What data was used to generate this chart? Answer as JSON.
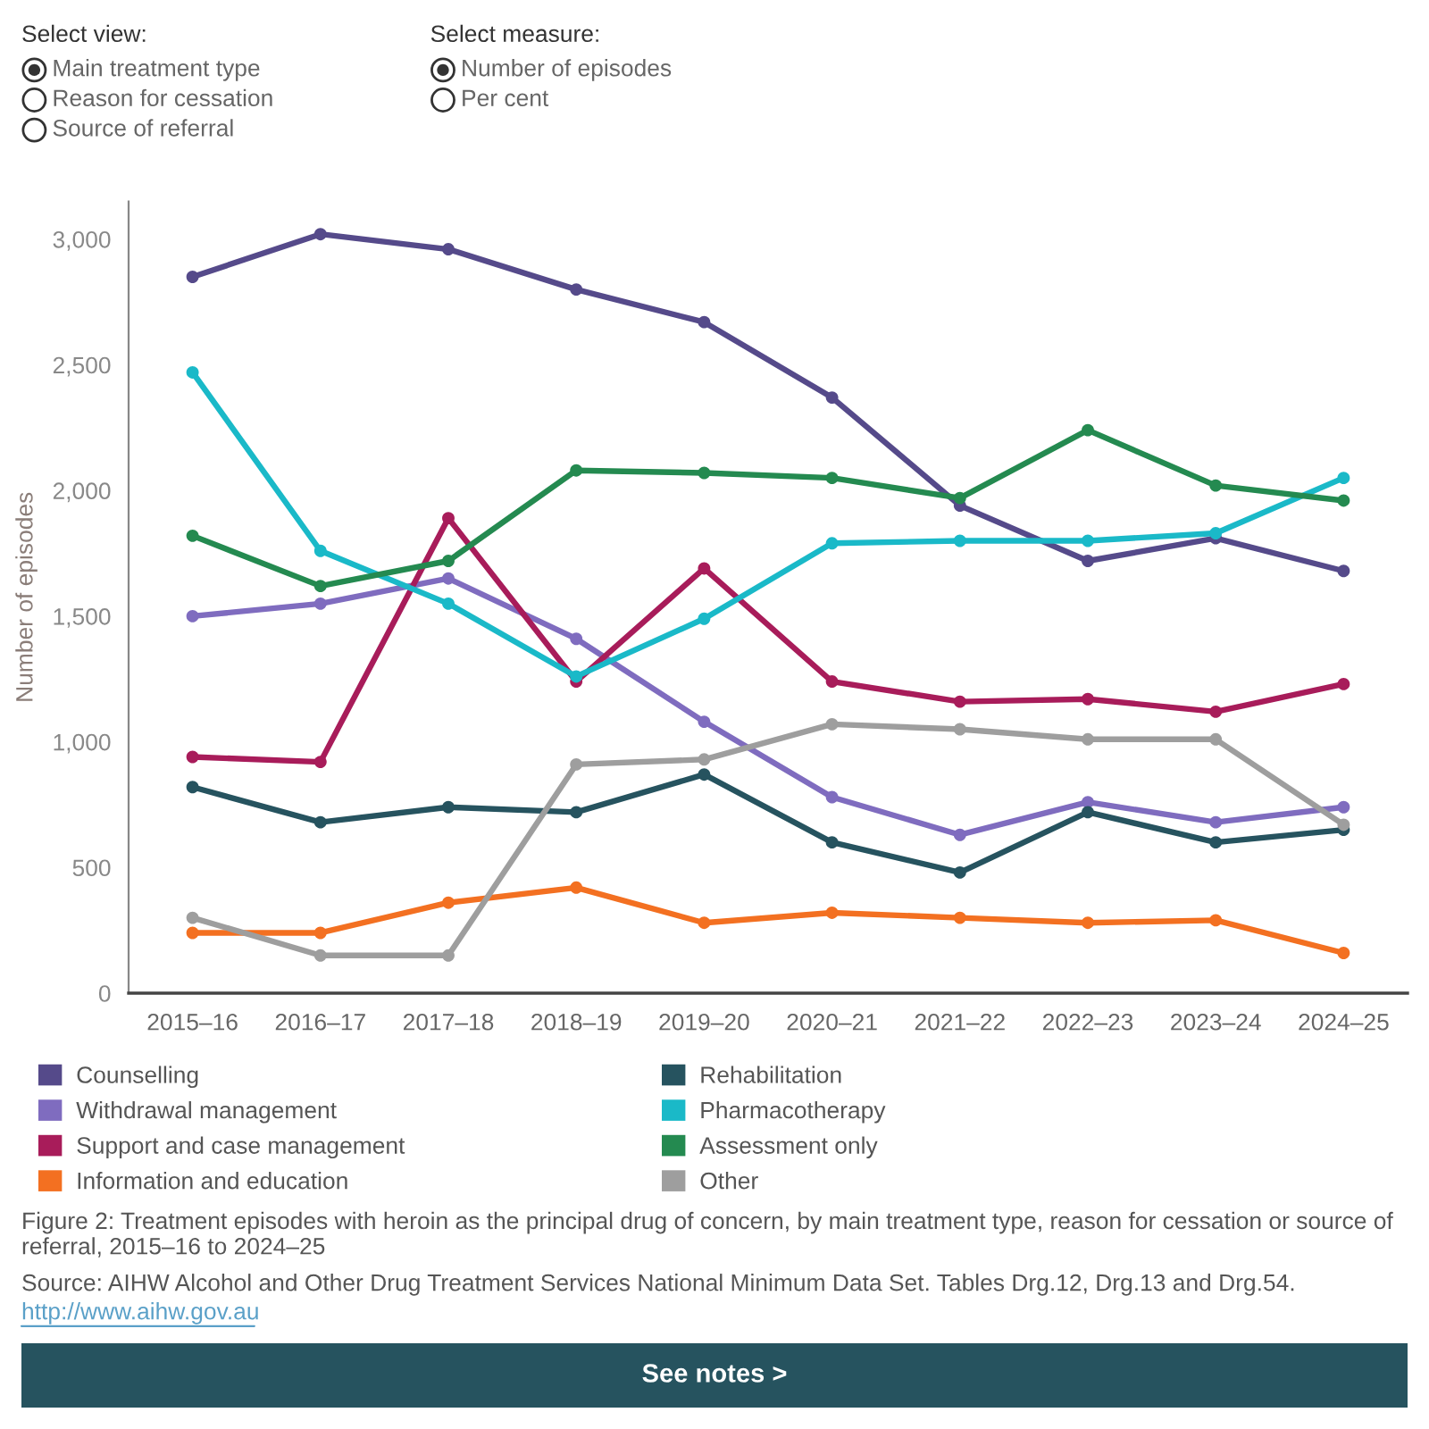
{
  "chart_data": {
    "type": "line",
    "title": "Figure 2: Treatment episodes with heroin as the principal drug of concern, by main treatment type, reason for cessation or source of referral, 2015–16 to 2024–25",
    "ylabel": "Number of episodes",
    "categories": [
      "2015–16",
      "2016–17",
      "2017–18",
      "2018–19",
      "2019–20",
      "2020–21",
      "2021–22",
      "2022–23",
      "2023–24",
      "2024–25"
    ],
    "series": [
      {
        "name": "Counselling",
        "color": "#554a8a",
        "values": [
          2850,
          3020,
          2960,
          2800,
          2670,
          2370,
          1940,
          1720,
          1810,
          1680
        ]
      },
      {
        "name": "Withdrawal management",
        "color": "#7f6cbf",
        "values": [
          1500,
          1550,
          1650,
          1410,
          1080,
          780,
          630,
          760,
          680,
          740
        ]
      },
      {
        "name": "Support and case management",
        "color": "#a81c5a",
        "values": [
          940,
          920,
          1890,
          1240,
          1690,
          1240,
          1160,
          1170,
          1120,
          1230
        ]
      },
      {
        "name": "Information and education",
        "color": "#f37021",
        "values": [
          240,
          240,
          360,
          420,
          280,
          320,
          300,
          280,
          290,
          160
        ]
      },
      {
        "name": "Rehabilitation",
        "color": "#26535f",
        "values": [
          820,
          680,
          740,
          720,
          870,
          600,
          480,
          720,
          600,
          650
        ]
      },
      {
        "name": "Pharmacotherapy",
        "color": "#1ab9c8",
        "values": [
          2470,
          1760,
          1550,
          1260,
          1490,
          1790,
          1800,
          1800,
          1830,
          2050
        ]
      },
      {
        "name": "Assessment only",
        "color": "#248a50",
        "values": [
          1820,
          1620,
          1720,
          2080,
          2070,
          2050,
          1970,
          2240,
          2020,
          1960
        ]
      },
      {
        "name": "Other",
        "color": "#9e9e9e",
        "values": [
          300,
          150,
          150,
          910,
          930,
          1070,
          1050,
          1010,
          1010,
          670
        ]
      }
    ],
    "ylim": [
      0,
      3150
    ],
    "yticks": [
      0,
      500,
      {
        "value": 1000,
        "label": "1,000"
      },
      {
        "value": 1500,
        "label": "1,500"
      },
      {
        "value": 2000,
        "label": "2,000"
      },
      {
        "value": 2500,
        "label": "2,500"
      },
      {
        "value": 3000,
        "label": "3,000"
      }
    ],
    "grid": false,
    "legend": "bottom",
    "marker": "circle",
    "line_style": "solid",
    "annotations": [
      "Select view:",
      "Main treatment type",
      "Reason for cessation",
      "Source of referral",
      "Select measure:",
      "Number of episodes",
      "Per cent",
      "Source: AIHW Alcohol and Other Drug Treatment Services National Minimum Data Set. Tables Drg.12, Drg.13 and Drg.54.",
      "http://www.aihw.gov.au",
      "See notes >"
    ]
  }
}
